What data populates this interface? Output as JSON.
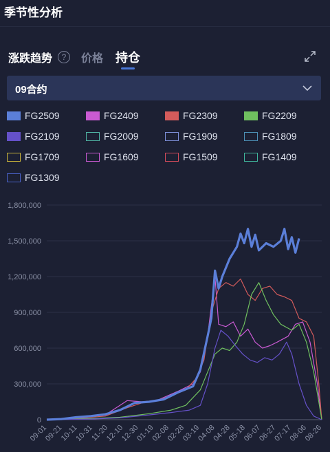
{
  "header": {
    "title": "季节性分析"
  },
  "tabs": {
    "zdqs": "涨跌趋势",
    "help": "?",
    "price": "价格",
    "hold": "持仓"
  },
  "select": {
    "value": "09合约"
  },
  "legend": [
    {
      "name": "FG2509",
      "color": "#5b7fd9",
      "filled": true
    },
    {
      "name": "FG2409",
      "color": "#c95ad2",
      "filled": true
    },
    {
      "name": "FG2309",
      "color": "#d35b5b",
      "filled": true
    },
    {
      "name": "FG2209",
      "color": "#6fbf5f",
      "filled": true
    },
    {
      "name": "FG2109",
      "color": "#6551c9",
      "filled": true
    },
    {
      "name": "FG2009",
      "color": "#4fb3a3",
      "filled": false
    },
    {
      "name": "FG1909",
      "color": "#7c8ed6",
      "filled": false
    },
    {
      "name": "FG1809",
      "color": "#4c8fb5",
      "filled": false
    },
    {
      "name": "FG1709",
      "color": "#c9b43a",
      "filled": false
    },
    {
      "name": "FG1609",
      "color": "#c95ad2",
      "filled": false
    },
    {
      "name": "FG1509",
      "color": "#d34b5b",
      "filled": false
    },
    {
      "name": "FG1409",
      "color": "#3fb59b",
      "filled": false
    },
    {
      "name": "FG1309",
      "color": "#4a62c9",
      "filled": false
    }
  ],
  "chart_data": {
    "type": "line",
    "title": "",
    "xlabel": "",
    "ylabel": "",
    "ylim": [
      0,
      1800000
    ],
    "yticks": [
      "0",
      "300,000",
      "600,000",
      "900,000",
      "1,200,000",
      "1,500,000",
      "1,800,000"
    ],
    "xticks": [
      "09-01",
      "09-21",
      "10-11",
      "10-31",
      "11-20",
      "12-10",
      "12-30",
      "01-19",
      "02-08",
      "02-28",
      "03-19",
      "04-08",
      "04-28",
      "05-18",
      "06-07",
      "06-27",
      "07-17",
      "08-06",
      "08-26"
    ],
    "grid": true,
    "series": [
      {
        "name": "FG2509",
        "color": "#5b7fd9",
        "width": 3.2,
        "points": [
          [
            0,
            0
          ],
          [
            20,
            5000
          ],
          [
            40,
            20000
          ],
          [
            60,
            30000
          ],
          [
            80,
            45000
          ],
          [
            100,
            80000
          ],
          [
            120,
            140000
          ],
          [
            140,
            150000
          ],
          [
            160,
            170000
          ],
          [
            180,
            230000
          ],
          [
            200,
            280000
          ],
          [
            210,
            420000
          ],
          [
            220,
            700000
          ],
          [
            225,
            850000
          ],
          [
            230,
            1250000
          ],
          [
            235,
            1100000
          ],
          [
            240,
            1200000
          ],
          [
            250,
            1350000
          ],
          [
            260,
            1450000
          ],
          [
            265,
            1560000
          ],
          [
            270,
            1480000
          ],
          [
            275,
            1600000
          ],
          [
            280,
            1450000
          ],
          [
            285,
            1550000
          ],
          [
            290,
            1420000
          ],
          [
            300,
            1480000
          ],
          [
            310,
            1450000
          ],
          [
            320,
            1500000
          ],
          [
            325,
            1600000
          ],
          [
            330,
            1430000
          ],
          [
            335,
            1530000
          ],
          [
            340,
            1400000
          ],
          [
            345,
            1520000
          ]
        ]
      },
      {
        "name": "FG2409",
        "color": "#c95ad2",
        "width": 1.2,
        "points": [
          [
            0,
            0
          ],
          [
            40,
            15000
          ],
          [
            80,
            40000
          ],
          [
            100,
            120000
          ],
          [
            110,
            160000
          ],
          [
            130,
            150000
          ],
          [
            150,
            160000
          ],
          [
            180,
            240000
          ],
          [
            200,
            300000
          ],
          [
            210,
            400000
          ],
          [
            220,
            700000
          ],
          [
            230,
            1200000
          ],
          [
            235,
            800000
          ],
          [
            245,
            780000
          ],
          [
            255,
            820000
          ],
          [
            265,
            700000
          ],
          [
            275,
            760000
          ],
          [
            285,
            650000
          ],
          [
            295,
            600000
          ],
          [
            305,
            620000
          ],
          [
            315,
            650000
          ],
          [
            330,
            700000
          ],
          [
            340,
            800000
          ],
          [
            350,
            820000
          ],
          [
            360,
            650000
          ],
          [
            370,
            300000
          ],
          [
            376,
            0
          ]
        ]
      },
      {
        "name": "FG2309",
        "color": "#d35b5b",
        "width": 1.2,
        "points": [
          [
            0,
            0
          ],
          [
            40,
            10000
          ],
          [
            80,
            30000
          ],
          [
            110,
            100000
          ],
          [
            130,
            140000
          ],
          [
            150,
            160000
          ],
          [
            170,
            200000
          ],
          [
            190,
            250000
          ],
          [
            205,
            350000
          ],
          [
            215,
            500000
          ],
          [
            225,
            900000
          ],
          [
            235,
            1100000
          ],
          [
            245,
            1150000
          ],
          [
            255,
            1120000
          ],
          [
            265,
            1180000
          ],
          [
            275,
            1050000
          ],
          [
            285,
            1000000
          ],
          [
            295,
            1100000
          ],
          [
            305,
            1120000
          ],
          [
            315,
            1050000
          ],
          [
            325,
            1030000
          ],
          [
            335,
            1000000
          ],
          [
            345,
            850000
          ],
          [
            355,
            820000
          ],
          [
            365,
            700000
          ],
          [
            372,
            300000
          ],
          [
            376,
            0
          ]
        ]
      },
      {
        "name": "FG2209",
        "color": "#6fbf5f",
        "width": 1.2,
        "points": [
          [
            0,
            0
          ],
          [
            60,
            10000
          ],
          [
            100,
            20000
          ],
          [
            140,
            50000
          ],
          [
            170,
            80000
          ],
          [
            190,
            120000
          ],
          [
            210,
            250000
          ],
          [
            220,
            400000
          ],
          [
            230,
            550000
          ],
          [
            240,
            600000
          ],
          [
            250,
            580000
          ],
          [
            260,
            650000
          ],
          [
            270,
            800000
          ],
          [
            280,
            1050000
          ],
          [
            290,
            1150000
          ],
          [
            300,
            1000000
          ],
          [
            310,
            880000
          ],
          [
            320,
            800000
          ],
          [
            335,
            750000
          ],
          [
            345,
            800000
          ],
          [
            355,
            650000
          ],
          [
            365,
            400000
          ],
          [
            372,
            150000
          ],
          [
            376,
            0
          ]
        ]
      },
      {
        "name": "FG2109",
        "color": "#6551c9",
        "width": 1.2,
        "points": [
          [
            0,
            0
          ],
          [
            60,
            5000
          ],
          [
            100,
            15000
          ],
          [
            140,
            40000
          ],
          [
            170,
            60000
          ],
          [
            195,
            80000
          ],
          [
            210,
            120000
          ],
          [
            220,
            300000
          ],
          [
            230,
            600000
          ],
          [
            238,
            750000
          ],
          [
            248,
            700000
          ],
          [
            258,
            620000
          ],
          [
            268,
            550000
          ],
          [
            278,
            500000
          ],
          [
            288,
            480000
          ],
          [
            298,
            520000
          ],
          [
            308,
            500000
          ],
          [
            318,
            550000
          ],
          [
            328,
            650000
          ],
          [
            335,
            550000
          ],
          [
            345,
            300000
          ],
          [
            355,
            120000
          ],
          [
            365,
            30000
          ],
          [
            376,
            0
          ]
        ]
      }
    ]
  }
}
